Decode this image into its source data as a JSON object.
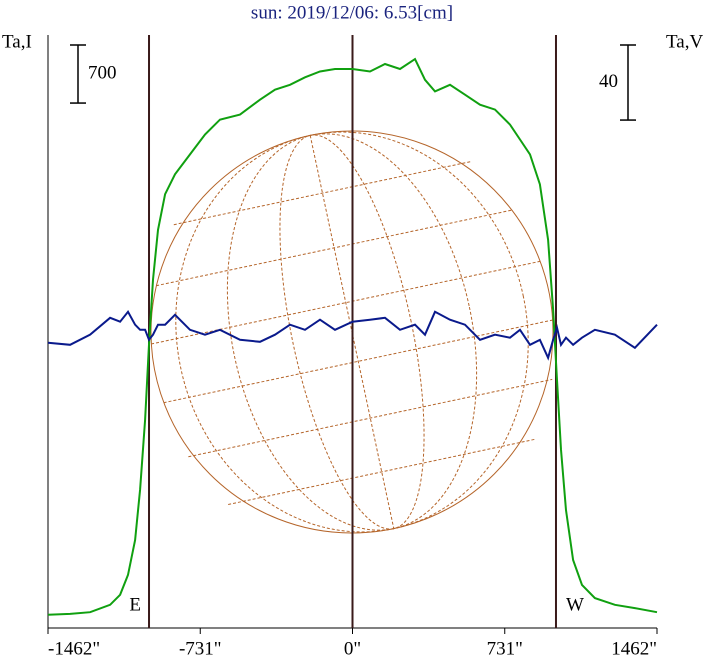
{
  "chart_data": {
    "type": "line",
    "title": "sun: 2019/12/06: 6.53[cm]",
    "ylabel": "Ta,I",
    "y2label": "Ta,V",
    "x": [
      -1462,
      -1356,
      -1260,
      -1164,
      -1116,
      -1078,
      -1044,
      -1020,
      -996,
      -977,
      -958,
      -934,
      -900,
      -852,
      -780,
      -708,
      -636,
      -540,
      -444,
      -372,
      -300,
      -228,
      -156,
      -84,
      0,
      84,
      156,
      228,
      300,
      348,
      396,
      468,
      540,
      612,
      684,
      756,
      804,
      852,
      900,
      939,
      963,
      982,
      1001,
      1025,
      1059,
      1102,
      1164,
      1260,
      1356,
      1462
    ],
    "series": [
      {
        "name": "Ta,I",
        "color": "#10a010",
        "axis": "y",
        "values": [
          160,
          170,
          190,
          280,
          400,
          640,
          1060,
          1670,
          2510,
          3420,
          4200,
          4800,
          5230,
          5470,
          5710,
          5950,
          6130,
          6190,
          6370,
          6490,
          6550,
          6640,
          6710,
          6740,
          6740,
          6710,
          6800,
          6740,
          6860,
          6610,
          6470,
          6550,
          6430,
          6310,
          6250,
          6070,
          5890,
          5710,
          5350,
          4680,
          3840,
          2990,
          2150,
          1420,
          820,
          520,
          360,
          280,
          240,
          190
        ]
      },
      {
        "name": "Ta,V",
        "color": "#0a1a8c",
        "axis": "y2",
        "values": [
          0,
          -1.1,
          4.3,
          13.3,
          11.2,
          16.5,
          9.6,
          6.9,
          6.9,
          1.6,
          4.3,
          9.6,
          9.6,
          14.9,
          6.9,
          4.3,
          6.9,
          1.6,
          0.5,
          4.3,
          9.6,
          6.9,
          12.3,
          6.9,
          11.2,
          12.3,
          13.3,
          6.9,
          9.6,
          4.3,
          16.5,
          12.3,
          9.6,
          1.6,
          4.3,
          2.7,
          6.9,
          -1.1,
          1.6,
          -8,
          1.6,
          8,
          -1.1,
          2.7,
          -1.1,
          2.7,
          6.9,
          4.3,
          -2.7,
          9.6
        ]
      }
    ],
    "xlim": [
      -1462,
      1462
    ],
    "xticks": [
      {
        "value": -1462,
        "label": "-1462\""
      },
      {
        "value": -731,
        "label": "-731\""
      },
      {
        "value": 0,
        "label": "0\""
      },
      {
        "value": 731,
        "label": "731\""
      },
      {
        "value": 1462,
        "label": "1462\""
      }
    ],
    "ylim": [
      0,
      7150
    ],
    "y2lim": [
      -152,
      164
    ],
    "y_scale_bar": 700,
    "y2_scale_bar": 40,
    "limb_lines": [
      -977,
      0,
      977
    ],
    "annotations": [
      "E",
      "W"
    ]
  }
}
